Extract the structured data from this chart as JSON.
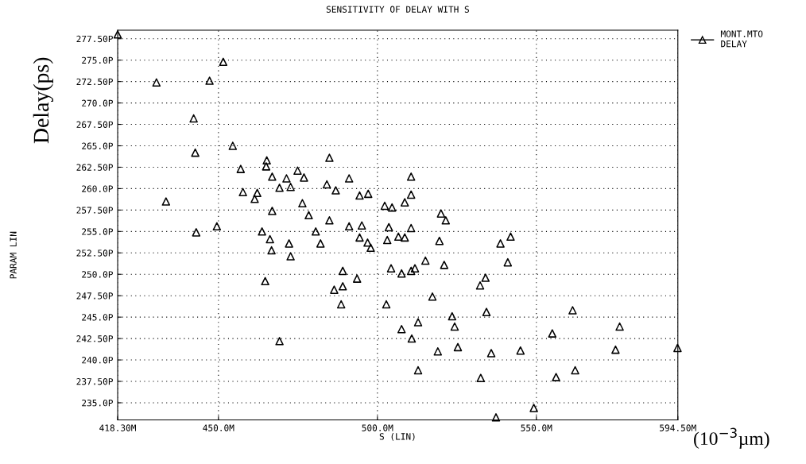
{
  "chart_data": {
    "type": "scatter",
    "title": "SENSITIVITY OF DELAY WITH S",
    "xlabel": "S (LIN)",
    "ylabel": "Delay(ps)",
    "annotations": [
      "PARAM LIN",
      "(10$^{−3}$µm)"
    ],
    "series": [
      {
        "name": "MONT.MTO\nDELAY",
        "color": "#000000",
        "x": [
          418.3,
          451.5,
          430.5,
          447.2,
          442.2,
          454.5,
          442.7,
          465.2,
          465.0,
          457.0,
          457.7,
          462.2,
          461.4,
          433.5,
          484.9,
          474.9,
          466.9,
          471.4,
          476.9,
          491.1,
          510.6,
          469.2,
          472.7,
          484.1,
          486.9,
          494.4,
          497.1,
          510.6,
          508.6,
          476.4,
          502.3,
          504.6,
          466.9,
          520.0,
          521.5,
          478.4,
          484.9,
          449.5,
          443.0,
          463.7,
          464.7,
          466.2,
          466.7,
          491.1,
          495.1,
          503.6,
          510.6,
          480.6,
          472.2,
          482.1,
          494.4,
          496.9,
          497.9,
          503.1,
          506.6,
          508.6,
          519.5,
          538.7,
          541.9,
          472.7,
          515.1,
          521.0,
          541.0,
          504.3,
          511.8,
          510.6,
          507.6,
          489.1,
          493.6,
          534.0,
          532.3,
          489.1,
          486.4,
          517.3,
          488.6,
          502.8,
          534.3,
          523.5,
          512.8,
          524.3,
          507.6,
          510.8,
          469.2,
          519.0,
          525.3,
          535.8,
          545.0,
          512.8,
          532.5,
          537.3,
          561.4,
          555.0,
          576.2,
          574.9,
          594.4,
          562.2,
          556.2,
          549.2
        ],
        "values": [
          278.0,
          274.8,
          272.4,
          272.6,
          268.2,
          265.0,
          264.2,
          263.3,
          262.6,
          262.3,
          259.6,
          259.5,
          258.8,
          258.5,
          263.6,
          262.1,
          261.4,
          261.2,
          261.3,
          261.2,
          261.4,
          260.1,
          260.2,
          260.5,
          259.8,
          259.2,
          259.4,
          259.3,
          258.4,
          258.3,
          258.0,
          257.8,
          257.4,
          257.1,
          256.3,
          256.9,
          256.3,
          255.6,
          254.9,
          255.0,
          249.2,
          254.1,
          252.8,
          255.6,
          255.7,
          255.5,
          255.4,
          255.0,
          253.6,
          253.6,
          254.3,
          253.7,
          253.1,
          254.0,
          254.4,
          254.3,
          253.9,
          253.6,
          254.4,
          252.1,
          251.6,
          251.1,
          251.4,
          250.7,
          250.7,
          250.4,
          250.1,
          250.4,
          249.5,
          249.6,
          248.7,
          248.6,
          248.2,
          247.4,
          246.5,
          246.5,
          245.6,
          245.1,
          244.4,
          243.9,
          243.6,
          242.5,
          242.2,
          241.0,
          241.5,
          240.8,
          241.1,
          238.8,
          237.9,
          233.3,
          245.8,
          243.1,
          243.9,
          241.2,
          241.4,
          238.8,
          238.0,
          234.4
        ]
      }
    ],
    "marker": "triangle",
    "legend": "top right",
    "grid": true,
    "xlim": [
      418.3,
      594.5
    ],
    "ylim": [
      233.0,
      278.5
    ],
    "xticks": [
      {
        "value": 418.3,
        "label": "418.30M"
      },
      {
        "value": 450,
        "label": "450.0M"
      },
      {
        "value": 500,
        "label": "500.0M"
      },
      {
        "value": 550,
        "label": "550.0M"
      },
      {
        "value": 594.5,
        "label": "594.50M"
      }
    ],
    "yticks": [
      {
        "value": 235,
        "label": "235.0P"
      },
      {
        "value": 237.5,
        "label": "237.50P"
      },
      {
        "value": 240,
        "label": "240.0P"
      },
      {
        "value": 242.5,
        "label": "242.50P"
      },
      {
        "value": 245,
        "label": "245.0P"
      },
      {
        "value": 247.5,
        "label": "247.50P"
      },
      {
        "value": 250,
        "label": "250.0P"
      },
      {
        "value": 252.5,
        "label": "252.50P"
      },
      {
        "value": 255,
        "label": "255.0P"
      },
      {
        "value": 257.5,
        "label": "257.50P"
      },
      {
        "value": 260,
        "label": "260.0P"
      },
      {
        "value": 262.5,
        "label": "262.50P"
      },
      {
        "value": 265,
        "label": "265.0P"
      },
      {
        "value": 267.5,
        "label": "267.50P"
      },
      {
        "value": 270,
        "label": "270.0P"
      },
      {
        "value": 272.5,
        "label": "272.50P"
      },
      {
        "value": 275,
        "label": "275.0P"
      },
      {
        "value": 277.5,
        "label": "277.50P"
      }
    ]
  }
}
